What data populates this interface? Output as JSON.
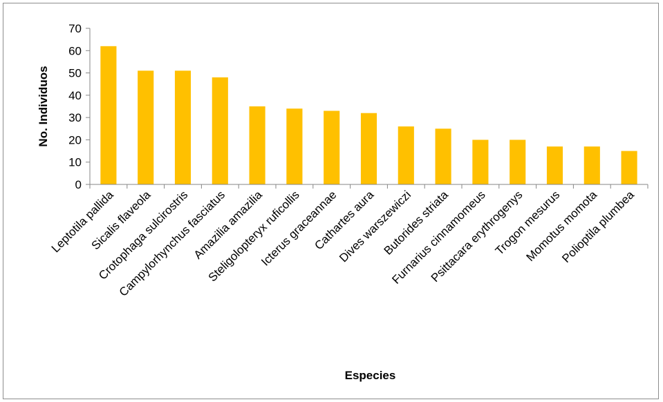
{
  "chart_data": {
    "type": "bar",
    "categories": [
      "Leptotila pallida",
      "Sicalis flaveola",
      "Crotophaga sulcirostris",
      "Campylorhynchus fasciatus",
      "Amazilia amazilia",
      "Steligolopteryx ruficollis",
      "Icterus graceannae",
      "Cathartes aura",
      "Dives warszewiczi",
      "Butorides striata",
      "Furnarius cinnamomeus",
      "Psittacara erythrogenys",
      "Trogon mesurus",
      "Momotus momota",
      "Polioptila plumbea"
    ],
    "values": [
      62,
      51,
      51,
      48,
      35,
      34,
      33,
      32,
      26,
      25,
      20,
      20,
      17,
      17,
      15
    ],
    "xlabel": "Especies",
    "ylabel": "No. Individuos",
    "ylim": [
      0,
      70
    ],
    "yticks": [
      "0",
      "10",
      "20",
      "30",
      "40",
      "50",
      "60",
      "70"
    ],
    "grid": false,
    "bar_color": "#FFC000",
    "axis_color": "#868686"
  }
}
